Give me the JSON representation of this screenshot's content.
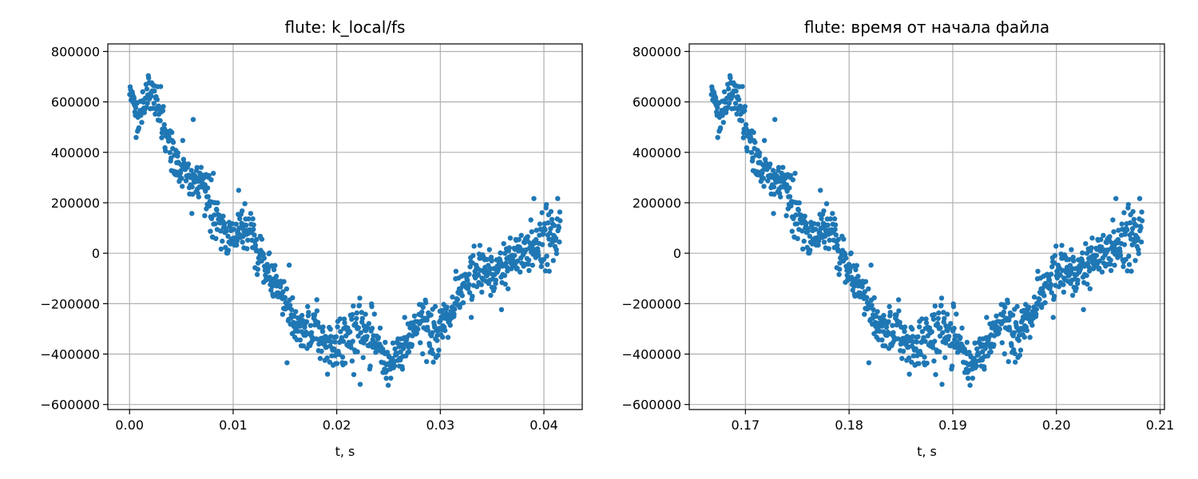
{
  "chart_data": [
    {
      "type": "scatter",
      "title": "flute: k_local/fs",
      "xlabel": "t, s",
      "ylabel": "",
      "xlim": [
        -0.0021,
        0.0437
      ],
      "ylim": [
        -620000,
        830000
      ],
      "xticks": [
        0.0,
        0.01,
        0.02,
        0.03,
        0.04
      ],
      "xtick_labels": [
        "0.00",
        "0.01",
        "0.02",
        "0.03",
        "0.04"
      ],
      "yticks": [
        -600000,
        -400000,
        -200000,
        0,
        200000,
        400000,
        600000,
        800000
      ],
      "ytick_labels": [
        "−600000",
        "−400000",
        "−200000",
        "0",
        "200000",
        "400000",
        "600000",
        "800000"
      ],
      "grid": true,
      "marker_color": "#1f77b4",
      "x_start": 0.0,
      "x_end": 0.0416,
      "approx_points": 1000,
      "envelope": {
        "x": [
          0.0,
          0.001,
          0.002,
          0.003,
          0.004,
          0.005,
          0.006,
          0.007,
          0.008,
          0.009,
          0.01,
          0.011,
          0.012,
          0.013,
          0.014,
          0.015,
          0.016,
          0.017,
          0.018,
          0.019,
          0.02,
          0.021,
          0.022,
          0.023,
          0.024,
          0.025,
          0.026,
          0.027,
          0.028,
          0.029,
          0.03,
          0.031,
          0.032,
          0.033,
          0.034,
          0.035,
          0.036,
          0.037,
          0.038,
          0.039,
          0.04,
          0.041,
          0.0416
        ],
        "mean": [
          650000,
          540000,
          660000,
          540000,
          390000,
          330000,
          280000,
          300000,
          180000,
          80000,
          70000,
          120000,
          60000,
          -50000,
          -130000,
          -170000,
          -300000,
          -320000,
          -300000,
          -370000,
          -360000,
          -330000,
          -280000,
          -330000,
          -370000,
          -450000,
          -390000,
          -340000,
          -250000,
          -320000,
          -290000,
          -260000,
          -170000,
          -80000,
          -60000,
          -80000,
          -60000,
          -30000,
          20000,
          20000,
          40000,
          60000,
          120000
        ],
        "spread": [
          40000,
          70000,
          80000,
          90000,
          90000,
          100000,
          90000,
          100000,
          100000,
          90000,
          90000,
          90000,
          80000,
          80000,
          80000,
          70000,
          80000,
          90000,
          90000,
          110000,
          100000,
          90000,
          110000,
          110000,
          100000,
          90000,
          90000,
          100000,
          110000,
          110000,
          100000,
          100000,
          100000,
          110000,
          140000,
          100000,
          100000,
          90000,
          100000,
          110000,
          120000,
          110000,
          80000
        ]
      }
    },
    {
      "type": "scatter",
      "title": "flute: время от начала файла",
      "xlabel": "t, s",
      "ylabel": "",
      "xlim": [
        0.16458,
        0.21042
      ],
      "ylim": [
        -620000,
        830000
      ],
      "xticks": [
        0.17,
        0.18,
        0.19,
        0.2,
        0.21
      ],
      "xtick_labels": [
        "0.17",
        "0.18",
        "0.19",
        "0.20",
        "0.21"
      ],
      "yticks": [
        -600000,
        -400000,
        -200000,
        0,
        200000,
        400000,
        600000,
        800000
      ],
      "ytick_labels": [
        "−600000",
        "−400000",
        "−200000",
        "0",
        "200000",
        "400000",
        "600000",
        "800000"
      ],
      "grid": true,
      "marker_color": "#1f77b4",
      "x_start": 0.1667,
      "x_end": 0.2083,
      "approx_points": 1000,
      "envelope_same_as_first": true
    }
  ]
}
